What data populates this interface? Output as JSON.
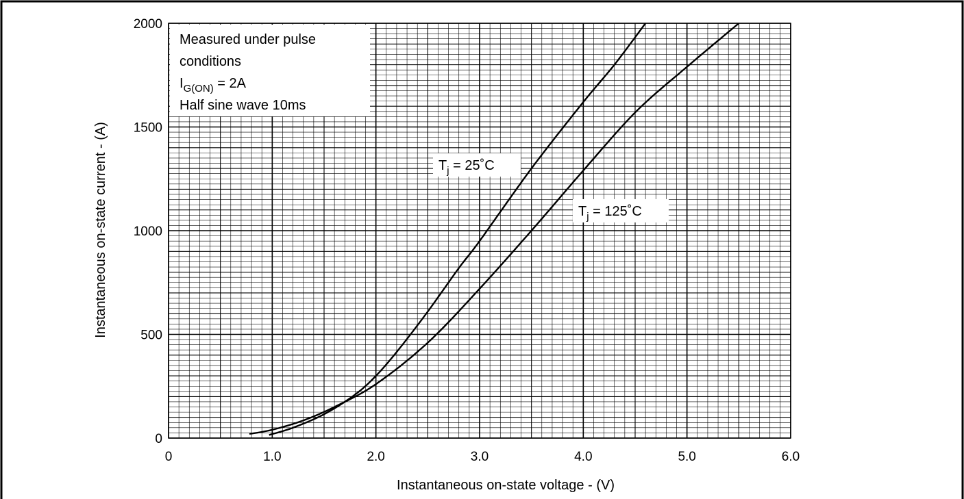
{
  "chart_data": {
    "type": "line",
    "xlabel": "Instantaneous on-state voltage - (V)",
    "ylabel": "Instantaneous on-state current - (A)",
    "xlim": [
      0,
      6.0
    ],
    "ylim": [
      0,
      2000
    ],
    "x_ticks": [
      "0",
      "1.0",
      "2.0",
      "3.0",
      "4.0",
      "5.0",
      "6.0"
    ],
    "y_ticks": [
      "0",
      "500",
      "1000",
      "1500",
      "2000"
    ],
    "grid": true,
    "conditions": {
      "line1": "Measured under pulse",
      "line2": "conditions",
      "gate_symbol": "I",
      "gate_sub": "G(ON)",
      "gate_value": " = 2A",
      "line4": "Half sine wave 10ms"
    },
    "series": [
      {
        "name": "Tj = 25˚C",
        "label_symbol": "T",
        "label_sub": "j",
        "label_value": " = 25˚C",
        "points": [
          [
            0.97,
            15
          ],
          [
            1.2,
            50
          ],
          [
            1.5,
            115
          ],
          [
            1.8,
            210
          ],
          [
            2.0,
            300
          ],
          [
            2.2,
            415
          ],
          [
            2.5,
            610
          ],
          [
            2.8,
            820
          ],
          [
            3.0,
            950
          ],
          [
            3.5,
            1300
          ],
          [
            4.0,
            1620
          ],
          [
            4.3,
            1800
          ],
          [
            4.6,
            2000
          ]
        ]
      },
      {
        "name": "Tj = 125˚C",
        "label_symbol": "T",
        "label_sub": "j",
        "label_value": " = 125˚C",
        "points": [
          [
            0.78,
            20
          ],
          [
            1.0,
            40
          ],
          [
            1.3,
            85
          ],
          [
            1.6,
            150
          ],
          [
            2.0,
            260
          ],
          [
            2.5,
            460
          ],
          [
            3.0,
            720
          ],
          [
            3.5,
            1000
          ],
          [
            4.0,
            1290
          ],
          [
            4.5,
            1570
          ],
          [
            5.0,
            1790
          ],
          [
            5.5,
            2000
          ]
        ]
      }
    ]
  }
}
